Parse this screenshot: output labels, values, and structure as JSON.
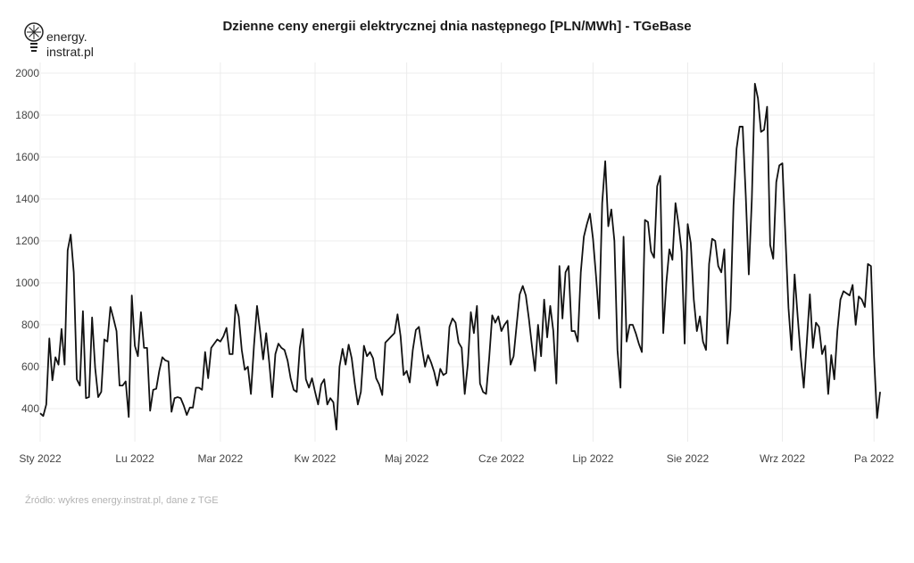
{
  "logo": {
    "line1": "energy.",
    "line2": "instrat.pl",
    "icon": "lightbulb-icon"
  },
  "chart_data": {
    "type": "line",
    "title": "Dzienne ceny energii elektrycznej dnia następnego [PLN/MWh] - TGeBase",
    "xlabel": "",
    "ylabel": "",
    "ylim": [
      290,
      2000
    ],
    "y_ticks": [
      400,
      600,
      800,
      1000,
      1200,
      1400,
      1600,
      1800,
      2000
    ],
    "x_ticks": [
      {
        "label": "Sty 2022",
        "day": 0
      },
      {
        "label": "Lu 2022",
        "day": 31
      },
      {
        "label": "Mar 2022",
        "day": 59
      },
      {
        "label": "Kw 2022",
        "day": 90
      },
      {
        "label": "Maj 2022",
        "day": 120
      },
      {
        "label": "Cze 2022",
        "day": 151
      },
      {
        "label": "Lip 2022",
        "day": 181
      },
      {
        "label": "Sie 2022",
        "day": 212
      },
      {
        "label": "Wrz 2022",
        "day": 243
      },
      {
        "label": "Pa 2022",
        "day": 273
      }
    ],
    "grid": true,
    "line_color": "#111111",
    "series": [
      {
        "values": [
          378,
          365,
          420,
          735,
          535,
          645,
          610,
          780,
          610,
          1155,
          1230,
          1050,
          540,
          510,
          865,
          450,
          455,
          835,
          595,
          455,
          480,
          730,
          720,
          885,
          830,
          770,
          510,
          510,
          530,
          360,
          940,
          700,
          650,
          860,
          690,
          690,
          390,
          490,
          495,
          580,
          645,
          630,
          625,
          385,
          450,
          455,
          450,
          415,
          370,
          405,
          405,
          500,
          500,
          490,
          670,
          545,
          690,
          710,
          730,
          720,
          745,
          785,
          660,
          660,
          895,
          840,
          680,
          585,
          600,
          470,
          700,
          890,
          770,
          635,
          760,
          620,
          455,
          660,
          710,
          690,
          680,
          630,
          545,
          490,
          480,
          690,
          780,
          540,
          500,
          545,
          480,
          420,
          515,
          540,
          420,
          450,
          430,
          300,
          600,
          685,
          610,
          705,
          640,
          520,
          420,
          480,
          700,
          650,
          670,
          640,
          545,
          515,
          465,
          715,
          730,
          745,
          760,
          850,
          745,
          560,
          580,
          525,
          680,
          775,
          790,
          690,
          600,
          655,
          620,
          575,
          510,
          590,
          560,
          570,
          790,
          830,
          810,
          715,
          690,
          470,
          610,
          860,
          760,
          890,
          520,
          480,
          470,
          640,
          845,
          810,
          840,
          770,
          800,
          820,
          610,
          650,
          800,
          945,
          985,
          940,
          830,
          700,
          580,
          800,
          650,
          920,
          740,
          890,
          770,
          520,
          1080,
          830,
          1050,
          1080,
          770,
          770,
          720,
          1050,
          1220,
          1280,
          1330,
          1210,
          1030,
          830,
          1380,
          1580,
          1270,
          1350,
          1200,
          680,
          500,
          1220,
          720,
          800,
          800,
          760,
          710,
          670,
          1300,
          1290,
          1150,
          1120,
          1460,
          1510,
          760,
          1000,
          1160,
          1110,
          1380,
          1280,
          1150,
          710,
          1280,
          1190,
          920,
          770,
          840,
          720,
          680,
          1090,
          1210,
          1200,
          1080,
          1050,
          1160,
          710,
          870,
          1370,
          1640,
          1745,
          1745,
          1420,
          1040,
          1400,
          1950,
          1880,
          1720,
          1730,
          1840,
          1180,
          1115,
          1480,
          1560,
          1570,
          1220,
          880,
          680,
          1040,
          840,
          650,
          500,
          720,
          945,
          690,
          810,
          790,
          660,
          700,
          470,
          655,
          540,
          770,
          920,
          960,
          950,
          940,
          990,
          800,
          935,
          920,
          885,
          1090,
          1080,
          650,
          355,
          480
        ]
      }
    ]
  },
  "source": "Źródło: wykres energy.instrat.pl, dane z TGE"
}
